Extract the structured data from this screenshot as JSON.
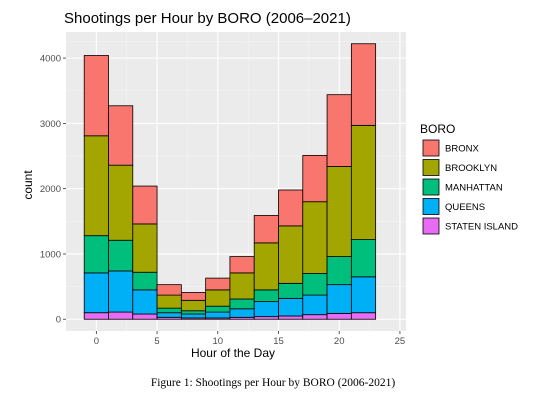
{
  "chart_data": {
    "type": "bar",
    "stacked": true,
    "title": "Shootings per Hour by BORO (2006–2021)",
    "xlabel": "Hour of the Day",
    "ylabel": "count",
    "xlim": [
      -2.5,
      25.5
    ],
    "ylim": [
      -180,
      4400
    ],
    "x_ticks": [
      "0",
      "5",
      "10",
      "15",
      "20",
      "25"
    ],
    "y_ticks": [
      "0",
      "1000",
      "2000",
      "3000",
      "4000"
    ],
    "bin_width": 2,
    "x": [
      0,
      2,
      4,
      6,
      8,
      10,
      12,
      14,
      16,
      18,
      20,
      22
    ],
    "legend_title": "BORO",
    "legend_position": "right",
    "grid": true,
    "series": [
      {
        "name": "STATEN ISLAND",
        "color": "#E76BF3",
        "values": [
          100,
          110,
          80,
          30,
          20,
          20,
          30,
          40,
          50,
          70,
          90,
          100
        ]
      },
      {
        "name": "QUEENS",
        "color": "#00B0F6",
        "values": [
          610,
          630,
          370,
          70,
          60,
          90,
          130,
          230,
          270,
          300,
          440,
          550
        ]
      },
      {
        "name": "MANHATTAN",
        "color": "#00BF7D",
        "values": [
          570,
          470,
          270,
          70,
          50,
          90,
          150,
          180,
          230,
          330,
          430,
          570
        ]
      },
      {
        "name": "BROOKLYN",
        "color": "#A3A500",
        "values": [
          1530,
          1150,
          740,
          200,
          160,
          250,
          400,
          720,
          880,
          1100,
          1380,
          1750
        ]
      },
      {
        "name": "BRONX",
        "color": "#F8766D",
        "values": [
          1230,
          910,
          580,
          160,
          120,
          180,
          250,
          420,
          550,
          710,
          1100,
          1250
        ]
      }
    ],
    "legend_order": [
      "BRONX",
      "BROOKLYN",
      "MANHATTAN",
      "QUEENS",
      "STATEN ISLAND"
    ]
  },
  "caption": "Figure 1: Shootings per Hour by BORO (2006-2021)"
}
